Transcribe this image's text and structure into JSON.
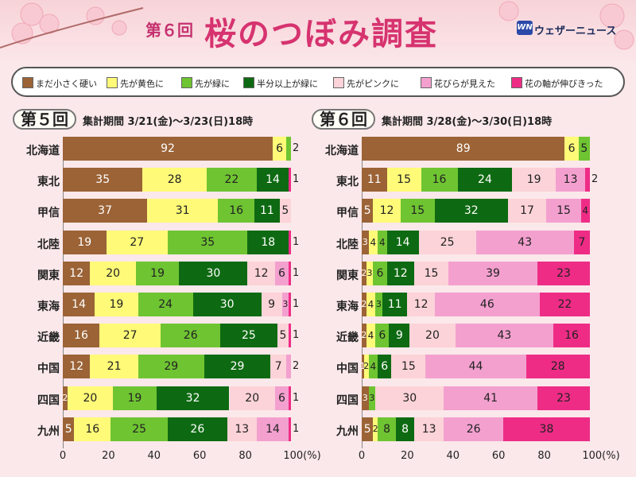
{
  "header": {
    "edition": "第６回",
    "title": "桜のつぼみ調査",
    "brand_logo": "WN",
    "brand": "ウェザーニュース"
  },
  "colors": {
    "c1": "#9b6336",
    "c2": "#fffa78",
    "c3": "#6fc432",
    "c4": "#0e6a12",
    "c5": "#fcd3d8",
    "c6": "#f3a0cf",
    "c7": "#ee2c86"
  },
  "legend": [
    {
      "key": "c1",
      "label": "まだ小さく硬い"
    },
    {
      "key": "c2",
      "label": "先が黄色に"
    },
    {
      "key": "c3",
      "label": "先が緑に"
    },
    {
      "key": "c4",
      "label": "半分以上が緑に"
    },
    {
      "key": "c5",
      "label": "先がピンクに"
    },
    {
      "key": "c6",
      "label": "花びらが見えた"
    },
    {
      "key": "c7",
      "label": "花の軸が伸びきった"
    }
  ],
  "axis": {
    "ticks": [
      "0",
      "20",
      "40",
      "60",
      "80",
      "100(%)"
    ]
  },
  "chart_data": [
    {
      "type": "bar",
      "orientation": "horizontal",
      "stacked": true,
      "badge": "第５回",
      "period": "集計期間 3/21(金)〜3/23(日)18時",
      "xlim": [
        0,
        100
      ],
      "categories": [
        "北海道",
        "東北",
        "甲信",
        "北陸",
        "関東",
        "東海",
        "近畿",
        "中国",
        "四国",
        "九州"
      ],
      "series": [
        {
          "name": "まだ小さく硬い",
          "values": [
            92,
            35,
            37,
            19,
            12,
            14,
            16,
            12,
            2,
            5
          ]
        },
        {
          "name": "先が黄色に",
          "values": [
            6,
            28,
            31,
            27,
            20,
            19,
            27,
            21,
            20,
            16
          ]
        },
        {
          "name": "先が緑に",
          "values": [
            2,
            22,
            16,
            35,
            19,
            24,
            26,
            29,
            19,
            25
          ]
        },
        {
          "name": "半分以上が緑に",
          "values": [
            0,
            14,
            11,
            18,
            30,
            30,
            25,
            29,
            32,
            26
          ]
        },
        {
          "name": "先がピンクに",
          "values": [
            0,
            0,
            5,
            0,
            12,
            9,
            5,
            7,
            20,
            13
          ]
        },
        {
          "name": "花びらが見えた",
          "values": [
            0,
            0,
            0,
            0,
            6,
            3,
            0,
            2,
            6,
            14
          ]
        },
        {
          "name": "花の軸が伸びきった",
          "values": [
            0,
            1,
            0,
            1,
            1,
            1,
            1,
            0,
            1,
            1
          ]
        }
      ]
    },
    {
      "type": "bar",
      "orientation": "horizontal",
      "stacked": true,
      "badge": "第６回",
      "period": "集計期間 3/28(金)〜3/30(日)18時",
      "xlim": [
        0,
        100
      ],
      "categories": [
        "北海道",
        "東北",
        "甲信",
        "北陸",
        "関東",
        "東海",
        "近畿",
        "中国",
        "四国",
        "九州"
      ],
      "series": [
        {
          "name": "まだ小さく硬い",
          "values": [
            89,
            11,
            5,
            3,
            2,
            2,
            2,
            1,
            3,
            5
          ]
        },
        {
          "name": "先が黄色に",
          "values": [
            6,
            15,
            12,
            4,
            3,
            4,
            4,
            2,
            0,
            2
          ]
        },
        {
          "name": "先が緑に",
          "values": [
            5,
            16,
            15,
            4,
            6,
            3,
            6,
            4,
            3,
            8
          ]
        },
        {
          "name": "半分以上が緑に",
          "values": [
            0,
            24,
            32,
            14,
            12,
            11,
            9,
            6,
            0,
            8
          ]
        },
        {
          "name": "先がピンクに",
          "values": [
            0,
            19,
            17,
            25,
            15,
            12,
            20,
            15,
            30,
            13
          ]
        },
        {
          "name": "花びらが見えた",
          "values": [
            0,
            13,
            15,
            43,
            39,
            46,
            43,
            44,
            41,
            26
          ]
        },
        {
          "name": "花の軸が伸びきった",
          "values": [
            0,
            2,
            4,
            7,
            23,
            22,
            16,
            28,
            23,
            38
          ]
        }
      ]
    }
  ]
}
